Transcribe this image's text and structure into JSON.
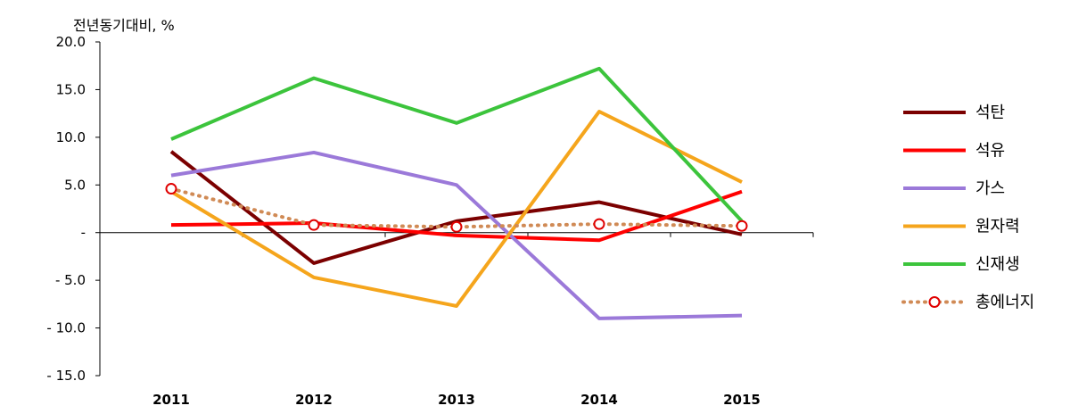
{
  "chart_data": {
    "type": "line",
    "ylabel": "전년동기대비, %",
    "categories": [
      "2011",
      "2012",
      "2013",
      "2014",
      "2015"
    ],
    "ylim": [
      -15,
      20
    ],
    "yticks": [
      20,
      15,
      10,
      5,
      0,
      -5,
      -10,
      -15
    ],
    "ytick_labels": [
      "20.0",
      "15.0",
      "10.0",
      "5.0",
      "-",
      "- 5.0",
      "- 10.0",
      "- 15.0"
    ],
    "legend_position": "right",
    "grid": false,
    "series": [
      {
        "name": "석탄",
        "color": "#7b0000",
        "style": "solid",
        "values": [
          8.5,
          -3.2,
          1.2,
          3.2,
          -0.2
        ]
      },
      {
        "name": "석유",
        "color": "#ff0000",
        "style": "solid",
        "values": [
          0.8,
          1.0,
          -0.3,
          -0.8,
          4.3
        ]
      },
      {
        "name": "가스",
        "color": "#9b79d9",
        "style": "solid",
        "values": [
          6.0,
          8.4,
          5.0,
          -9.0,
          -8.7
        ]
      },
      {
        "name": "원자력",
        "color": "#f5a51c",
        "style": "solid",
        "values": [
          4.3,
          -4.7,
          -7.7,
          12.7,
          5.3
        ]
      },
      {
        "name": "신재생",
        "color": "#3cc43c",
        "style": "solid",
        "values": [
          9.8,
          16.2,
          11.5,
          17.2,
          1.2
        ]
      },
      {
        "name": "총에너지",
        "color": "#d08a55",
        "marker_color": "#e00000",
        "style": "dotted",
        "values": [
          4.6,
          0.8,
          0.6,
          0.9,
          0.7
        ]
      }
    ]
  }
}
